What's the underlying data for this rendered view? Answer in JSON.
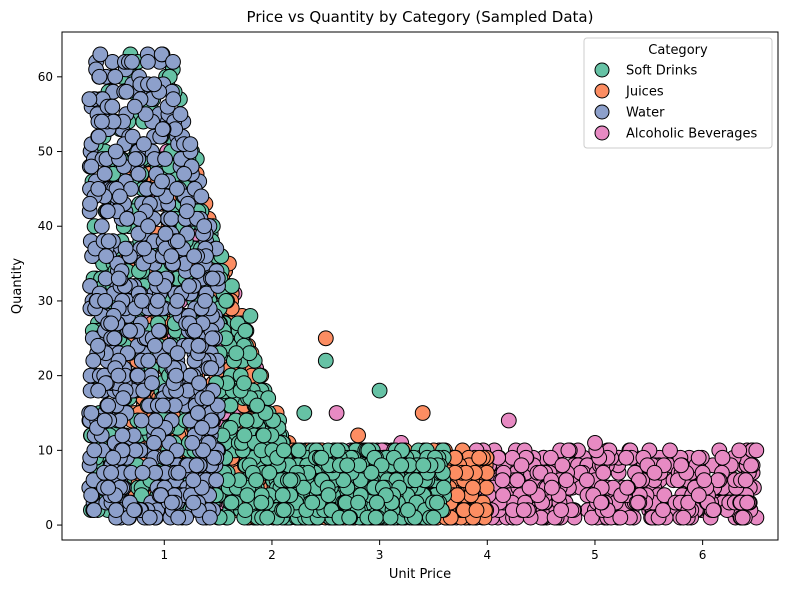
{
  "chart_data": {
    "type": "scatter",
    "title": "Price vs Quantity by Category (Sampled Data)",
    "xlabel": "Unit Price",
    "ylabel": "Quantity",
    "xlim": [
      0.05,
      6.7
    ],
    "ylim": [
      -2,
      66
    ],
    "x_ticks": [
      1,
      2,
      3,
      4,
      5,
      6
    ],
    "y_ticks": [
      0,
      10,
      20,
      30,
      40,
      50,
      60
    ],
    "grid": false,
    "legend": {
      "title": "Category",
      "placement": "top-right"
    },
    "marker": {
      "edge_color": "#000000"
    },
    "series": [
      {
        "name": "Soft Drinks",
        "color": "#66c2a5",
        "price_range": [
          0.3,
          3.6
        ],
        "quantity_range": [
          1,
          63
        ],
        "cloud_points": [
          [
            0.45,
            5
          ],
          [
            0.6,
            20
          ],
          [
            0.8,
            45
          ],
          [
            1.05,
            60
          ],
          [
            1.2,
            38
          ],
          [
            1.5,
            10
          ],
          [
            1.8,
            28
          ],
          [
            2.1,
            4
          ],
          [
            2.3,
            15
          ],
          [
            2.5,
            22
          ],
          [
            2.8,
            3
          ],
          [
            3.0,
            18
          ],
          [
            3.2,
            8
          ],
          [
            3.5,
            1
          ]
        ]
      },
      {
        "name": "Juices",
        "color": "#fc8d62",
        "price_range": [
          0.5,
          4.0
        ],
        "quantity_range": [
          1,
          50
        ],
        "cloud_points": [
          [
            0.7,
            14
          ],
          [
            1.0,
            30
          ],
          [
            1.3,
            47
          ],
          [
            1.6,
            35
          ],
          [
            1.9,
            20
          ],
          [
            2.2,
            10
          ],
          [
            2.5,
            25
          ],
          [
            2.8,
            12
          ],
          [
            3.1,
            5
          ],
          [
            3.4,
            15
          ],
          [
            3.7,
            9
          ],
          [
            3.9,
            2
          ]
        ]
      },
      {
        "name": "Water",
        "color": "#8da0cb",
        "price_range": [
          0.3,
          1.5
        ],
        "quantity_range": [
          1,
          63
        ],
        "cloud_points": [
          [
            0.35,
            10
          ],
          [
            0.45,
            30
          ],
          [
            0.55,
            50
          ],
          [
            0.7,
            62
          ],
          [
            0.85,
            40
          ],
          [
            1.0,
            22
          ],
          [
            1.15,
            55
          ],
          [
            1.3,
            8
          ],
          [
            1.45,
            33
          ]
        ]
      },
      {
        "name": "Alcoholic Beverages",
        "color": "#e78ac3",
        "price_range": [
          0.8,
          6.5
        ],
        "quantity_range": [
          1,
          50
        ],
        "cloud_points": [
          [
            1.0,
            35
          ],
          [
            1.5,
            24
          ],
          [
            2.0,
            8
          ],
          [
            2.6,
            15
          ],
          [
            3.2,
            11
          ],
          [
            3.9,
            10
          ],
          [
            4.2,
            14
          ],
          [
            4.6,
            5
          ],
          [
            5.0,
            11
          ],
          [
            5.4,
            3
          ],
          [
            5.8,
            8
          ],
          [
            6.1,
            2
          ],
          [
            6.4,
            6
          ]
        ]
      }
    ]
  }
}
